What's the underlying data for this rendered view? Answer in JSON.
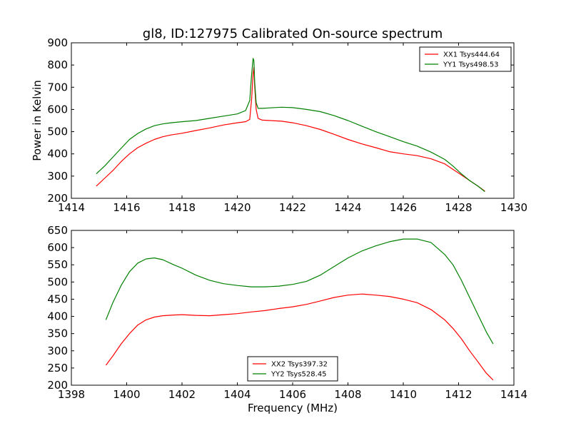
{
  "title": "gl8, ID:127975 Calibrated On-source spectrum",
  "chart_data": [
    {
      "type": "line",
      "title": "gl8, ID:127975 Calibrated On-source spectrum",
      "xlabel": "",
      "ylabel": "Power in Kelvin",
      "xlim": [
        1414,
        1430
      ],
      "ylim": [
        200,
        900
      ],
      "xticks": [
        1414,
        1416,
        1418,
        1420,
        1422,
        1424,
        1426,
        1428,
        1430
      ],
      "yticks": [
        200,
        300,
        400,
        500,
        600,
        700,
        800,
        900
      ],
      "legend_position": "top-right",
      "grid": false,
      "series": [
        {
          "name": "XX1 Tsys444.64",
          "color": "#ff0000",
          "x": [
            1414.9,
            1415.2,
            1415.5,
            1415.8,
            1416.1,
            1416.4,
            1416.7,
            1417.0,
            1417.3,
            1417.6,
            1418.0,
            1418.5,
            1419.0,
            1419.5,
            1420.0,
            1420.3,
            1420.45,
            1420.52,
            1420.57,
            1420.6,
            1420.63,
            1420.68,
            1420.75,
            1420.9,
            1421.2,
            1421.6,
            1422.0,
            1422.5,
            1423.0,
            1423.5,
            1424.0,
            1424.5,
            1425.0,
            1425.5,
            1426.0,
            1426.5,
            1427.0,
            1427.5,
            1427.8,
            1428.1,
            1428.4,
            1428.7,
            1428.95
          ],
          "y": [
            255,
            290,
            325,
            365,
            400,
            428,
            448,
            465,
            477,
            485,
            493,
            505,
            517,
            530,
            540,
            545,
            555,
            650,
            760,
            790,
            700,
            600,
            560,
            552,
            550,
            547,
            540,
            527,
            510,
            488,
            465,
            445,
            428,
            410,
            400,
            392,
            378,
            355,
            330,
            305,
            280,
            255,
            232
          ]
        },
        {
          "name": "YY1 Tsys498.53",
          "color": "#008000",
          "x": [
            1414.9,
            1415.2,
            1415.5,
            1415.8,
            1416.1,
            1416.4,
            1416.7,
            1417.0,
            1417.3,
            1417.6,
            1418.0,
            1418.5,
            1419.0,
            1419.5,
            1420.0,
            1420.3,
            1420.45,
            1420.52,
            1420.57,
            1420.6,
            1420.63,
            1420.68,
            1420.75,
            1420.9,
            1421.2,
            1421.6,
            1422.0,
            1422.5,
            1423.0,
            1423.5,
            1424.0,
            1424.5,
            1425.0,
            1425.5,
            1426.0,
            1426.5,
            1427.0,
            1427.5,
            1427.8,
            1428.1,
            1428.4,
            1428.7,
            1428.95
          ],
          "y": [
            310,
            345,
            385,
            425,
            465,
            492,
            512,
            527,
            535,
            540,
            545,
            550,
            560,
            570,
            580,
            595,
            640,
            760,
            830,
            820,
            720,
            630,
            605,
            605,
            607,
            610,
            608,
            600,
            590,
            572,
            550,
            525,
            500,
            478,
            455,
            435,
            408,
            375,
            345,
            310,
            280,
            255,
            230
          ]
        }
      ]
    },
    {
      "type": "line",
      "title": "",
      "xlabel": "Frequency (MHz)",
      "ylabel": "",
      "xlim": [
        1398,
        1414
      ],
      "ylim": [
        200,
        650
      ],
      "xticks": [
        1398,
        1400,
        1402,
        1404,
        1406,
        1408,
        1410,
        1412,
        1414
      ],
      "yticks": [
        200,
        250,
        300,
        350,
        400,
        450,
        500,
        550,
        600,
        650
      ],
      "legend_position": "bottom-center",
      "grid": false,
      "series": [
        {
          "name": "XX2 Tsys397.32",
          "color": "#ff0000",
          "x": [
            1399.25,
            1399.5,
            1399.8,
            1400.1,
            1400.4,
            1400.7,
            1401.0,
            1401.3,
            1401.7,
            1402.0,
            1402.5,
            1403.0,
            1403.5,
            1404.0,
            1404.5,
            1405.0,
            1405.5,
            1406.0,
            1406.5,
            1407.0,
            1407.5,
            1408.0,
            1408.5,
            1409.0,
            1409.5,
            1410.0,
            1410.5,
            1411.0,
            1411.5,
            1411.8,
            1412.1,
            1412.4,
            1412.7,
            1413.0,
            1413.25
          ],
          "y": [
            258,
            285,
            320,
            350,
            375,
            390,
            398,
            402,
            404,
            405,
            403,
            402,
            405,
            408,
            413,
            417,
            423,
            428,
            435,
            445,
            455,
            462,
            465,
            462,
            458,
            450,
            440,
            420,
            390,
            365,
            335,
            300,
            268,
            235,
            215
          ]
        },
        {
          "name": "YY2 Tsys528.45",
          "color": "#008000",
          "x": [
            1399.25,
            1399.5,
            1399.8,
            1400.1,
            1400.4,
            1400.7,
            1401.0,
            1401.3,
            1401.7,
            1402.0,
            1402.5,
            1403.0,
            1403.5,
            1404.0,
            1404.5,
            1405.0,
            1405.5,
            1406.0,
            1406.5,
            1407.0,
            1407.5,
            1408.0,
            1408.5,
            1409.0,
            1409.5,
            1410.0,
            1410.5,
            1411.0,
            1411.5,
            1411.8,
            1412.1,
            1412.4,
            1412.7,
            1413.0,
            1413.25
          ],
          "y": [
            390,
            440,
            490,
            530,
            555,
            567,
            570,
            565,
            550,
            540,
            520,
            505,
            495,
            490,
            486,
            486,
            488,
            493,
            502,
            520,
            545,
            570,
            590,
            605,
            617,
            625,
            625,
            615,
            580,
            550,
            505,
            455,
            405,
            355,
            320
          ]
        }
      ]
    }
  ]
}
